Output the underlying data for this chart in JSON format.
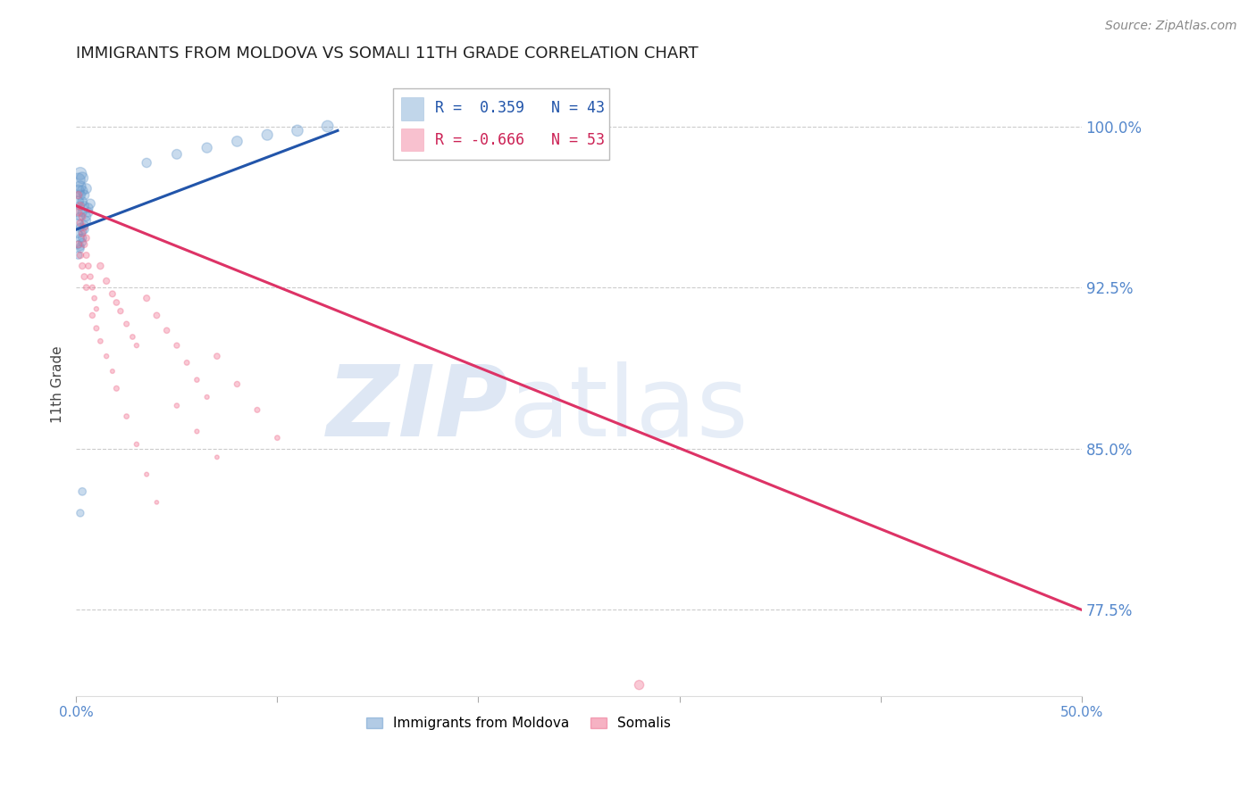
{
  "title": "IMMIGRANTS FROM MOLDOVA VS SOMALI 11TH GRADE CORRELATION CHART",
  "source": "Source: ZipAtlas.com",
  "ylabel": "11th Grade",
  "ylabel_right_labels": [
    "100.0%",
    "92.5%",
    "85.0%",
    "77.5%"
  ],
  "ylabel_right_ticks": [
    1.0,
    0.925,
    0.85,
    0.775
  ],
  "xlim": [
    0.0,
    0.5
  ],
  "ylim": [
    0.735,
    1.025
  ],
  "legend_R1": "0.359",
  "legend_N1": "43",
  "legend_R2": "-0.666",
  "legend_N2": "53",
  "blue_color": "#6699CC",
  "pink_color": "#EE6688",
  "moldova_label": "Immigrants from Moldova",
  "somali_label": "Somalis",
  "moldova_x": [
    0.001,
    0.001,
    0.001,
    0.001,
    0.001,
    0.002,
    0.002,
    0.002,
    0.002,
    0.002,
    0.002,
    0.003,
    0.003,
    0.003,
    0.003,
    0.004,
    0.004,
    0.005,
    0.001,
    0.001,
    0.002,
    0.002,
    0.003,
    0.003,
    0.004,
    0.005,
    0.006,
    0.001,
    0.002,
    0.003,
    0.004,
    0.005,
    0.006,
    0.007,
    0.035,
    0.05,
    0.065,
    0.08,
    0.095,
    0.11,
    0.125,
    0.002,
    0.003
  ],
  "moldova_y": [
    0.975,
    0.97,
    0.965,
    0.96,
    0.955,
    0.978,
    0.972,
    0.968,
    0.963,
    0.958,
    0.953,
    0.976,
    0.97,
    0.965,
    0.96,
    0.968,
    0.963,
    0.971,
    0.95,
    0.945,
    0.948,
    0.943,
    0.951,
    0.946,
    0.954,
    0.958,
    0.962,
    0.94,
    0.944,
    0.948,
    0.952,
    0.956,
    0.96,
    0.964,
    0.983,
    0.987,
    0.99,
    0.993,
    0.996,
    0.998,
    1.0,
    0.82,
    0.83
  ],
  "moldova_size": [
    120,
    90,
    70,
    60,
    50,
    100,
    80,
    65,
    55,
    48,
    42,
    85,
    68,
    58,
    50,
    62,
    54,
    66,
    45,
    40,
    44,
    39,
    46,
    41,
    48,
    52,
    56,
    38,
    41,
    44,
    47,
    50,
    53,
    56,
    55,
    60,
    65,
    70,
    75,
    80,
    85,
    35,
    38
  ],
  "somali_x": [
    0.001,
    0.002,
    0.003,
    0.004,
    0.005,
    0.001,
    0.002,
    0.003,
    0.004,
    0.005,
    0.006,
    0.007,
    0.008,
    0.009,
    0.01,
    0.012,
    0.015,
    0.018,
    0.02,
    0.022,
    0.025,
    0.028,
    0.03,
    0.035,
    0.04,
    0.045,
    0.05,
    0.055,
    0.06,
    0.065,
    0.07,
    0.08,
    0.09,
    0.1,
    0.001,
    0.002,
    0.003,
    0.004,
    0.005,
    0.008,
    0.01,
    0.012,
    0.015,
    0.018,
    0.02,
    0.025,
    0.03,
    0.035,
    0.04,
    0.05,
    0.06,
    0.07,
    0.28
  ],
  "somali_y": [
    0.968,
    0.963,
    0.958,
    0.953,
    0.948,
    0.96,
    0.955,
    0.95,
    0.945,
    0.94,
    0.935,
    0.93,
    0.925,
    0.92,
    0.915,
    0.935,
    0.928,
    0.922,
    0.918,
    0.914,
    0.908,
    0.902,
    0.898,
    0.92,
    0.912,
    0.905,
    0.898,
    0.89,
    0.882,
    0.874,
    0.893,
    0.88,
    0.868,
    0.855,
    0.945,
    0.94,
    0.935,
    0.93,
    0.925,
    0.912,
    0.906,
    0.9,
    0.893,
    0.886,
    0.878,
    0.865,
    0.852,
    0.838,
    0.825,
    0.87,
    0.858,
    0.846,
    0.74
  ],
  "somali_size": [
    35,
    33,
    31,
    29,
    27,
    32,
    30,
    28,
    26,
    24,
    22,
    20,
    18,
    16,
    14,
    28,
    26,
    24,
    22,
    20,
    18,
    16,
    14,
    25,
    23,
    21,
    19,
    17,
    15,
    13,
    22,
    20,
    18,
    16,
    30,
    28,
    26,
    24,
    22,
    20,
    18,
    16,
    14,
    12,
    18,
    16,
    14,
    12,
    10,
    15,
    13,
    11,
    55
  ],
  "blue_line_x": [
    0.0,
    0.13
  ],
  "blue_line_y": [
    0.952,
    0.998
  ],
  "pink_line_x": [
    0.0,
    0.5
  ],
  "pink_line_y": [
    0.963,
    0.775
  ],
  "grid_color": "#CCCCCC",
  "title_fontsize": 13,
  "axis_label_color": "#5588CC",
  "watermark_zip_color": "#C8D8EE",
  "watermark_atlas_color": "#C8D8EE"
}
